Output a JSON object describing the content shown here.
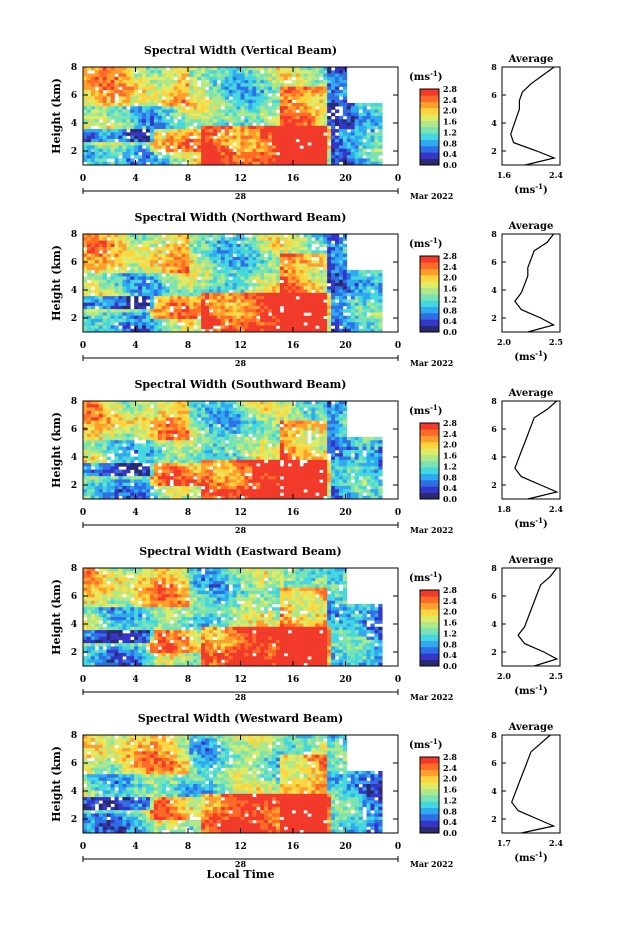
{
  "shared": {
    "x_tick_labels": [
      "0",
      "4",
      "8",
      "12",
      "16",
      "20",
      "0"
    ],
    "y_tick_labels": [
      "2",
      "4",
      "6",
      "8"
    ],
    "date_day": "28",
    "date_month": "Mar 2022",
    "ylabel": "Height (km)",
    "xlabel": "Local Time",
    "unit_label": "(ms",
    "unit_exp": "-1",
    "unit_close": ")",
    "avg_title": "Average",
    "colorbar_ticks": [
      "0.0",
      "0.4",
      "0.8",
      "1.2",
      "1.6",
      "2.0",
      "2.4",
      "2.8"
    ],
    "colors": [
      "#ffffff",
      "#2a2a70",
      "#3535c8",
      "#2f6fe6",
      "#2fa9f0",
      "#45d7e0",
      "#79e3b6",
      "#aee88a",
      "#e0ea64",
      "#ffd43c",
      "#ff9e2c",
      "#ff6a26",
      "#f23a2a"
    ]
  },
  "panels": [
    {
      "title": "Spectral Width (Vertical Beam)",
      "avg_ticks": [
        "1.6",
        "2.4"
      ],
      "avg_range": [
        1.5,
        2.5
      ]
    },
    {
      "title": "Spectral Width (Northward Beam)",
      "avg_ticks": [
        "2.0",
        "2.5"
      ],
      "avg_range": [
        1.7,
        2.6
      ]
    },
    {
      "title": "Spectral Width (Southward Beam)",
      "avg_ticks": [
        "1.8",
        "2.4"
      ],
      "avg_range": [
        1.6,
        2.5
      ]
    },
    {
      "title": "Spectral Width (Eastward Beam)",
      "avg_ticks": [
        "2.0",
        "2.5"
      ],
      "avg_range": [
        1.7,
        2.6
      ]
    },
    {
      "title": "Spectral Width (Westward Beam)",
      "avg_ticks": [
        "1.7",
        "2.4"
      ],
      "avg_range": [
        1.6,
        2.5
      ]
    }
  ],
  "chart_data": {
    "type": "heatmap",
    "x_axis": {
      "label": "Local Time",
      "range_hours": [
        0,
        24
      ]
    },
    "y_axis": {
      "label": "Height (km)",
      "range_km": [
        1,
        8
      ]
    },
    "colorbar": {
      "unit": "(ms-1)",
      "range": [
        0.0,
        2.8
      ]
    },
    "average_profiles": [
      {
        "beam": "Vertical",
        "x": [
          1.9,
          2.4,
          2.1,
          1.7,
          1.65,
          1.7,
          1.75,
          1.8,
          1.8,
          1.85,
          2.0,
          2.2,
          2.4
        ],
        "y": [
          1,
          1.5,
          2.0,
          2.6,
          3.2,
          3.8,
          4.4,
          5.0,
          5.6,
          6.2,
          6.8,
          7.4,
          8.0
        ]
      },
      {
        "beam": "Northward",
        "x": [
          2.1,
          2.5,
          2.3,
          2.0,
          1.9,
          2.0,
          2.05,
          2.1,
          2.1,
          2.15,
          2.2,
          2.4,
          2.5
        ],
        "y": [
          1,
          1.5,
          2.0,
          2.6,
          3.2,
          3.8,
          4.4,
          5.0,
          5.6,
          6.2,
          6.8,
          7.4,
          8.0
        ]
      },
      {
        "beam": "Southward",
        "x": [
          2.0,
          2.45,
          2.2,
          1.9,
          1.8,
          1.85,
          1.9,
          1.95,
          2.0,
          2.05,
          2.1,
          2.3,
          2.45
        ],
        "y": [
          1,
          1.5,
          2.0,
          2.6,
          3.2,
          3.8,
          4.4,
          5.0,
          5.6,
          6.2,
          6.8,
          7.4,
          8.0
        ]
      },
      {
        "beam": "Eastward",
        "x": [
          2.2,
          2.55,
          2.35,
          2.05,
          1.95,
          2.05,
          2.1,
          2.15,
          2.2,
          2.25,
          2.3,
          2.45,
          2.55
        ],
        "y": [
          1,
          1.5,
          2.0,
          2.6,
          3.2,
          3.8,
          4.4,
          5.0,
          5.6,
          6.2,
          6.8,
          7.4,
          8.0
        ]
      },
      {
        "beam": "Westward",
        "x": [
          1.9,
          2.4,
          2.15,
          1.85,
          1.75,
          1.8,
          1.85,
          1.9,
          1.95,
          2.0,
          2.05,
          2.2,
          2.35
        ],
        "y": [
          1,
          1.5,
          2.0,
          2.6,
          3.2,
          3.8,
          4.4,
          5.0,
          5.6,
          6.2,
          6.8,
          7.4,
          8.0
        ]
      }
    ]
  }
}
